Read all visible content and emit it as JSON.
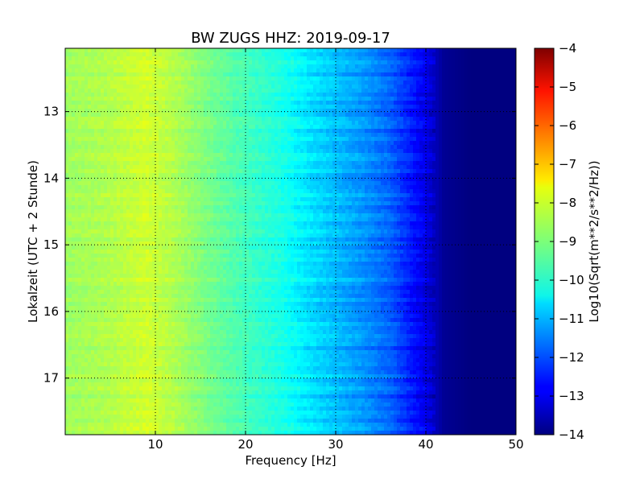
{
  "chart_data": {
    "type": "heatmap",
    "title": "BW ZUGS HHZ: 2019-09-17",
    "xlabel": "Frequency [Hz]",
    "ylabel": "Lokalzeit (UTC + 2 Stunde)",
    "xlim": [
      0,
      50
    ],
    "ylim": [
      12.05,
      17.85
    ],
    "y_inverted": true,
    "x_ticks": [
      "10",
      "20",
      "30",
      "40",
      "50"
    ],
    "y_ticks": [
      "13",
      "14",
      "15",
      "16",
      "17"
    ],
    "grid": true,
    "colormap": "jet",
    "colorbar": {
      "label": "Log10(Sqrt(m**2/s**2/Hz))",
      "range": [
        -14,
        -4
      ],
      "ticks": [
        "−4",
        "−5",
        "−6",
        "−7",
        "−8",
        "−9",
        "−10",
        "−11",
        "−12",
        "−13",
        "−14"
      ]
    },
    "frequency_profile": {
      "frequency_hz": [
        0,
        5,
        9,
        12,
        16,
        20,
        24,
        27,
        30,
        33,
        36,
        38,
        40,
        41,
        42,
        45,
        50
      ],
      "level": [
        -8.7,
        -8.5,
        -8.2,
        -8.5,
        -9.1,
        -9.6,
        -10.0,
        -10.5,
        -10.9,
        -11.3,
        -11.8,
        -12.4,
        -13.0,
        -13.4,
        -13.8,
        -14.0,
        -14.0
      ]
    }
  }
}
